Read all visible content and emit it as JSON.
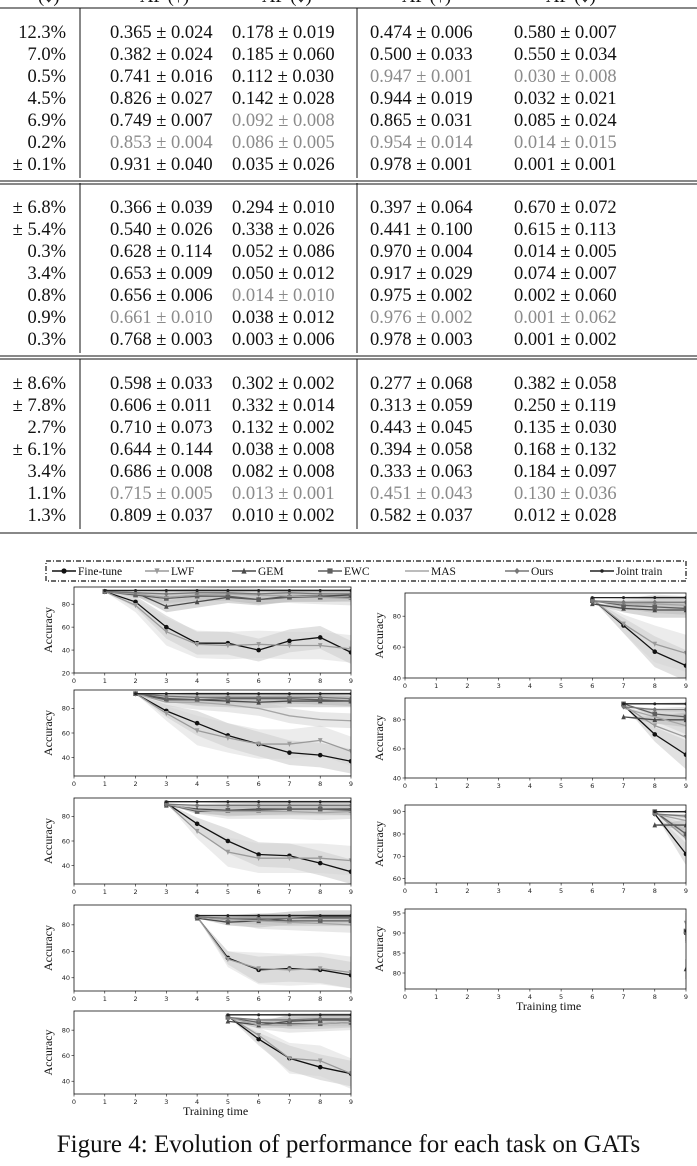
{
  "table": {
    "header": [
      "(↓)",
      "AP (↑)",
      "AF (↓)",
      "AP (↑)",
      "AF (↓)"
    ],
    "sections": [
      {
        "rows": [
          {
            "left": "12.3%",
            "cells": [
              "0.365 ± 0.024",
              "0.178 ± 0.019",
              "0.474 ± 0.006",
              "0.580 ± 0.007"
            ],
            "gray": []
          },
          {
            "left": "7.0%",
            "cells": [
              "0.382 ± 0.024",
              "0.185 ± 0.060",
              "0.500 ± 0.033",
              "0.550 ± 0.034"
            ],
            "gray": []
          },
          {
            "left": "0.5%",
            "cells": [
              "0.741 ± 0.016",
              "0.112 ± 0.030",
              "0.947 ± 0.001",
              "0.030 ± 0.008"
            ],
            "gray": [
              2,
              3
            ]
          },
          {
            "left": "4.5%",
            "cells": [
              "0.826 ± 0.027",
              "0.142 ± 0.028",
              "0.944 ± 0.019",
              "0.032 ± 0.021"
            ],
            "gray": []
          },
          {
            "left": "6.9%",
            "cells": [
              "0.749 ± 0.007",
              "0.092 ± 0.008",
              "0.865 ± 0.031",
              "0.085 ± 0.024"
            ],
            "gray": [
              1
            ]
          },
          {
            "left": "0.2%",
            "cells": [
              "0.853 ± 0.004",
              "0.086 ± 0.005",
              "0.954 ± 0.014",
              "0.014 ± 0.015"
            ],
            "gray": [
              0,
              1,
              2,
              3
            ]
          },
          {
            "left": "± 0.1%",
            "cells": [
              "0.931 ± 0.040",
              "0.035 ± 0.026",
              "0.978 ± 0.001",
              "0.001 ± 0.001"
            ],
            "gray": []
          }
        ]
      },
      {
        "rows": [
          {
            "left": "± 6.8%",
            "cells": [
              "0.366 ± 0.039",
              "0.294 ± 0.010",
              "0.397 ± 0.064",
              "0.670 ± 0.072"
            ],
            "gray": []
          },
          {
            "left": "± 5.4%",
            "cells": [
              "0.540 ± 0.026",
              "0.338 ± 0.026",
              "0.441 ± 0.100",
              "0.615 ± 0.113"
            ],
            "gray": []
          },
          {
            "left": "0.3%",
            "cells": [
              "0.628 ± 0.114",
              "0.052 ± 0.086",
              "0.970 ± 0.004",
              "0.014 ± 0.005"
            ],
            "gray": []
          },
          {
            "left": "3.4%",
            "cells": [
              "0.653 ± 0.009",
              "0.050 ± 0.012",
              "0.917 ± 0.029",
              "0.074 ± 0.007"
            ],
            "gray": []
          },
          {
            "left": "0.8%",
            "cells": [
              "0.656 ± 0.006",
              "0.014 ± 0.010",
              "0.975 ± 0.002",
              "0.002 ± 0.060"
            ],
            "gray": [
              1
            ]
          },
          {
            "left": "0.9%",
            "cells": [
              "0.661 ± 0.010",
              "0.038 ± 0.012",
              "0.976 ± 0.002",
              "0.001 ± 0.062"
            ],
            "gray": [
              0,
              2,
              3
            ]
          },
          {
            "left": "0.3%",
            "cells": [
              "0.768 ± 0.003",
              "0.003 ± 0.006",
              "0.978 ± 0.003",
              "0.001 ± 0.002"
            ],
            "gray": []
          }
        ]
      },
      {
        "rows": [
          {
            "left": "± 8.6%",
            "cells": [
              "0.598 ± 0.033",
              "0.302 ± 0.002",
              "0.277 ± 0.068",
              "0.382 ± 0.058"
            ],
            "gray": []
          },
          {
            "left": "± 7.8%",
            "cells": [
              "0.606 ± 0.011",
              "0.332 ± 0.014",
              "0.313 ± 0.059",
              "0.250 ± 0.119"
            ],
            "gray": []
          },
          {
            "left": "2.7%",
            "cells": [
              "0.710 ± 0.073",
              "0.132 ± 0.002",
              "0.443 ± 0.045",
              "0.135 ± 0.030"
            ],
            "gray": []
          },
          {
            "left": "± 6.1%",
            "cells": [
              "0.644 ± 0.144",
              "0.038 ± 0.008",
              "0.394 ± 0.058",
              "0.168 ± 0.132"
            ],
            "gray": []
          },
          {
            "left": "3.4%",
            "cells": [
              "0.686 ± 0.008",
              "0.082 ± 0.008",
              "0.333 ± 0.063",
              "0.184 ± 0.097"
            ],
            "gray": []
          },
          {
            "left": "1.1%",
            "cells": [
              "0.715 ± 0.005",
              "0.013 ± 0.001",
              "0.451 ± 0.043",
              "0.130 ± 0.036"
            ],
            "gray": [
              0,
              1,
              2,
              3
            ]
          },
          {
            "left": "1.3%",
            "cells": [
              "0.809 ± 0.037",
              "0.010 ± 0.002",
              "0.582 ± 0.037",
              "0.012 ± 0.028"
            ],
            "gray": []
          }
        ]
      }
    ]
  },
  "figure": {
    "legend": [
      "Fine-tune",
      "LWF",
      "GEM",
      "EWC",
      "MAS",
      "Ours",
      "Joint train"
    ],
    "ylabel": "Accuracy",
    "xlabel": "Training time",
    "caption": "Figure 4: Evolution of performance for each task on GATs"
  },
  "chart_data": [
    {
      "type": "line",
      "task": 1,
      "x": [
        1,
        2,
        3,
        4,
        5,
        6,
        7,
        8,
        9
      ],
      "xlim": [
        0,
        9
      ],
      "ylim": [
        20,
        95
      ],
      "yticks": [
        20,
        40,
        60,
        80
      ],
      "ylabel": "Accuracy",
      "series": [
        {
          "name": "Fine-tune",
          "values": [
            91,
            82,
            60,
            46,
            46,
            40,
            48,
            51,
            38
          ]
        },
        {
          "name": "LWF",
          "values": [
            91,
            79,
            56,
            45,
            44,
            45,
            44,
            44,
            41
          ]
        },
        {
          "name": "GEM",
          "values": [
            91,
            90,
            78,
            82,
            86,
            84,
            87,
            87,
            88
          ]
        },
        {
          "name": "EWC",
          "values": [
            91,
            88,
            85,
            87,
            87,
            84,
            86,
            86,
            86
          ]
        },
        {
          "name": "MAS",
          "values": [
            91,
            89,
            86,
            88,
            89,
            88,
            87,
            86,
            85
          ]
        },
        {
          "name": "Ours",
          "values": [
            91,
            90,
            89,
            90,
            90,
            89,
            90,
            89,
            89
          ]
        },
        {
          "name": "Joint train",
          "values": [
            92,
            92,
            92,
            92,
            92,
            92,
            92,
            92,
            92
          ]
        }
      ]
    },
    {
      "type": "line",
      "task": 2,
      "x": [
        2,
        3,
        4,
        5,
        6,
        7,
        8,
        9
      ],
      "xlim": [
        0,
        9
      ],
      "ylim": [
        25,
        95
      ],
      "yticks": [
        40,
        60,
        80
      ],
      "ylabel": "Accuracy",
      "series": [
        {
          "name": "Fine-tune",
          "values": [
            92,
            78,
            68,
            58,
            51,
            44,
            42,
            37
          ]
        },
        {
          "name": "LWF",
          "values": [
            92,
            76,
            62,
            56,
            51,
            51,
            54,
            45
          ]
        },
        {
          "name": "GEM",
          "values": [
            92,
            88,
            87,
            86,
            85,
            86,
            86,
            86
          ]
        },
        {
          "name": "EWC",
          "values": [
            92,
            87,
            87,
            88,
            88,
            88,
            87,
            86
          ]
        },
        {
          "name": "MAS",
          "values": [
            92,
            85,
            85,
            83,
            80,
            74,
            71,
            70
          ]
        },
        {
          "name": "Ours",
          "values": [
            92,
            90,
            89,
            89,
            89,
            89,
            89,
            88
          ]
        },
        {
          "name": "Joint train",
          "values": [
            92,
            92,
            92,
            92,
            92,
            92,
            92,
            92
          ]
        }
      ]
    },
    {
      "type": "line",
      "task": 3,
      "x": [
        3,
        4,
        5,
        6,
        7,
        8,
        9
      ],
      "xlim": [
        0,
        9
      ],
      "ylim": [
        25,
        95
      ],
      "yticks": [
        40,
        60,
        80
      ],
      "ylabel": "Accuracy",
      "series": [
        {
          "name": "Fine-tune",
          "values": [
            91,
            74,
            60,
            49,
            48,
            42,
            35
          ]
        },
        {
          "name": "LWF",
          "values": [
            91,
            68,
            51,
            46,
            46,
            46,
            44
          ]
        },
        {
          "name": "GEM",
          "values": [
            89,
            86,
            85,
            86,
            86,
            86,
            86
          ]
        },
        {
          "name": "EWC",
          "values": [
            90,
            84,
            85,
            85,
            86,
            86,
            85
          ]
        },
        {
          "name": "MAS",
          "values": [
            90,
            85,
            84,
            84,
            84,
            83,
            84
          ]
        },
        {
          "name": "Ours",
          "values": [
            90,
            89,
            89,
            89,
            89,
            89,
            89
          ]
        },
        {
          "name": "Joint train",
          "values": [
            92,
            92,
            92,
            92,
            92,
            92,
            92
          ]
        }
      ]
    },
    {
      "type": "line",
      "task": 4,
      "x": [
        4,
        5,
        6,
        7,
        8,
        9
      ],
      "xlim": [
        0,
        9
      ],
      "ylim": [
        30,
        95
      ],
      "yticks": [
        40,
        60,
        80
      ],
      "ylabel": "Accuracy",
      "series": [
        {
          "name": "Fine-tune",
          "values": [
            86,
            55,
            46,
            47,
            46,
            42
          ]
        },
        {
          "name": "LWF",
          "values": [
            86,
            54,
            47,
            46,
            47,
            44
          ]
        },
        {
          "name": "GEM",
          "values": [
            85,
            82,
            83,
            85,
            86,
            86
          ]
        },
        {
          "name": "EWC",
          "values": [
            86,
            84,
            84,
            83,
            83,
            83
          ]
        },
        {
          "name": "MAS",
          "values": [
            86,
            84,
            83,
            82,
            81,
            80
          ]
        },
        {
          "name": "Ours",
          "values": [
            86,
            85,
            85,
            85,
            85,
            85
          ]
        },
        {
          "name": "Joint train",
          "values": [
            87,
            87,
            87,
            87,
            87,
            87
          ]
        }
      ]
    },
    {
      "type": "line",
      "task": 5,
      "x": [
        5,
        6,
        7,
        8,
        9
      ],
      "xlim": [
        0,
        9
      ],
      "ylim": [
        30,
        95
      ],
      "yticks": [
        40,
        60,
        80
      ],
      "ylabel": "Accuracy",
      "xlabel": "Training time",
      "series": [
        {
          "name": "Fine-tune",
          "values": [
            91,
            73,
            58,
            51,
            46
          ]
        },
        {
          "name": "LWF",
          "values": [
            91,
            76,
            58,
            56,
            46
          ]
        },
        {
          "name": "GEM",
          "values": [
            87,
            84,
            87,
            88,
            88
          ]
        },
        {
          "name": "EWC",
          "values": [
            90,
            86,
            85,
            85,
            86
          ]
        },
        {
          "name": "MAS",
          "values": [
            90,
            84,
            84,
            85,
            86
          ]
        },
        {
          "name": "Ours",
          "values": [
            90,
            88,
            88,
            89,
            89
          ]
        },
        {
          "name": "Joint train",
          "values": [
            92,
            92,
            92,
            92,
            92
          ]
        }
      ]
    },
    {
      "type": "line",
      "task": 6,
      "x": [
        6,
        7,
        8,
        9
      ],
      "xlim": [
        0,
        9
      ],
      "ylim": [
        40,
        95
      ],
      "yticks": [
        40,
        60,
        80
      ],
      "ylabel": "Accuracy",
      "series": [
        {
          "name": "Fine-tune",
          "values": [
            91,
            74,
            57,
            48
          ]
        },
        {
          "name": "LWF",
          "values": [
            91,
            75,
            62,
            56
          ]
        },
        {
          "name": "GEM",
          "values": [
            88,
            85,
            84,
            84
          ]
        },
        {
          "name": "EWC",
          "values": [
            90,
            87,
            86,
            85
          ]
        },
        {
          "name": "MAS",
          "values": [
            90,
            88,
            88,
            87
          ]
        },
        {
          "name": "Ours",
          "values": [
            90,
            89,
            89,
            89
          ]
        },
        {
          "name": "Joint train",
          "values": [
            92,
            92,
            92,
            92
          ]
        }
      ]
    },
    {
      "type": "line",
      "task": 7,
      "x": [
        7,
        8,
        9
      ],
      "xlim": [
        0,
        9
      ],
      "ylim": [
        40,
        95
      ],
      "yticks": [
        40,
        60,
        80
      ],
      "ylabel": "Accuracy",
      "series": [
        {
          "name": "Fine-tune",
          "values": [
            90,
            70,
            56
          ]
        },
        {
          "name": "LWF",
          "values": [
            90,
            76,
            68
          ]
        },
        {
          "name": "GEM",
          "values": [
            82,
            80,
            80
          ]
        },
        {
          "name": "EWC",
          "values": [
            91,
            84,
            82
          ]
        },
        {
          "name": "MAS",
          "values": [
            88,
            82,
            76
          ]
        },
        {
          "name": "Ours",
          "values": [
            89,
            87,
            87
          ]
        },
        {
          "name": "Joint train",
          "values": [
            91,
            91,
            91
          ]
        }
      ]
    },
    {
      "type": "line",
      "task": 8,
      "x": [
        8,
        9
      ],
      "xlim": [
        0,
        9
      ],
      "ylim": [
        58,
        93
      ],
      "yticks": [
        60,
        70,
        80,
        90
      ],
      "ylabel": "Accuracy",
      "series": [
        {
          "name": "Fine-tune",
          "values": [
            89,
            71
          ]
        },
        {
          "name": "LWF",
          "values": [
            90,
            78
          ]
        },
        {
          "name": "GEM",
          "values": [
            84,
            84
          ]
        },
        {
          "name": "EWC",
          "values": [
            90,
            80
          ]
        },
        {
          "name": "MAS",
          "values": [
            89,
            86
          ]
        },
        {
          "name": "Ours",
          "values": [
            89,
            88
          ]
        },
        {
          "name": "Joint train",
          "values": [
            90,
            90
          ]
        }
      ]
    },
    {
      "type": "line",
      "task": 9,
      "x": [
        9
      ],
      "xlim": [
        0,
        9
      ],
      "ylim": [
        76,
        96
      ],
      "yticks": [
        80,
        85,
        90,
        95
      ],
      "ylabel": "Accuracy",
      "xlabel": "Training time",
      "series": [
        {
          "name": "Fine-tune",
          "values": [
            90
          ]
        },
        {
          "name": "LWF",
          "values": [
            92.5
          ]
        },
        {
          "name": "GEM",
          "values": [
            81
          ]
        },
        {
          "name": "EWC",
          "values": [
            90.5
          ]
        },
        {
          "name": "MAS",
          "values": [
            91
          ]
        },
        {
          "name": "Ours",
          "values": [
            90
          ]
        },
        {
          "name": "Joint train",
          "values": [
            90.5
          ]
        }
      ]
    }
  ]
}
